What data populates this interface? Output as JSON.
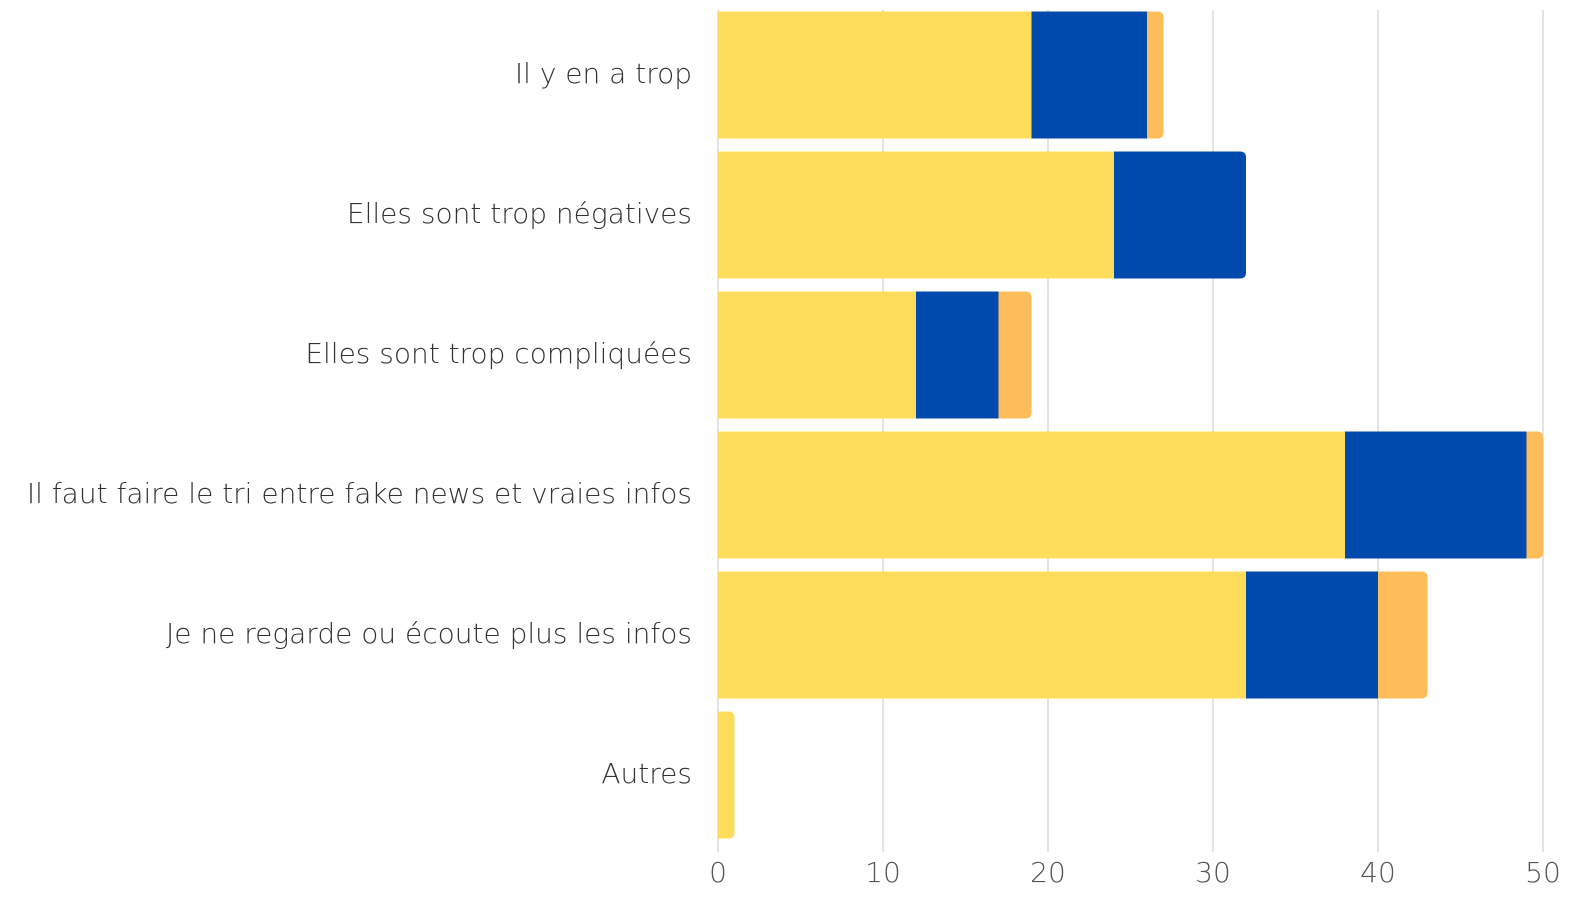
{
  "chart_data": {
    "type": "stacked-bar-horizontal",
    "categories": [
      "Il y en a trop",
      "Elles sont trop négatives",
      "Elles sont trop compliquées",
      "Il faut faire le tri entre fake news et vraies infos",
      "Je ne regarde ou écoute plus les infos",
      "Autres"
    ],
    "series": [
      {
        "color": "#ffdd5c",
        "values": [
          19,
          24,
          12,
          38,
          32,
          1
        ]
      },
      {
        "color": "#004aad",
        "values": [
          7,
          8,
          5,
          11,
          8,
          0
        ]
      },
      {
        "color": "#ffbc5a",
        "values": [
          1,
          0,
          2,
          1,
          3,
          0
        ]
      }
    ],
    "xlim": [
      0,
      50
    ],
    "xticks": [
      0,
      10,
      20,
      30,
      40,
      50
    ],
    "grid": true
  }
}
